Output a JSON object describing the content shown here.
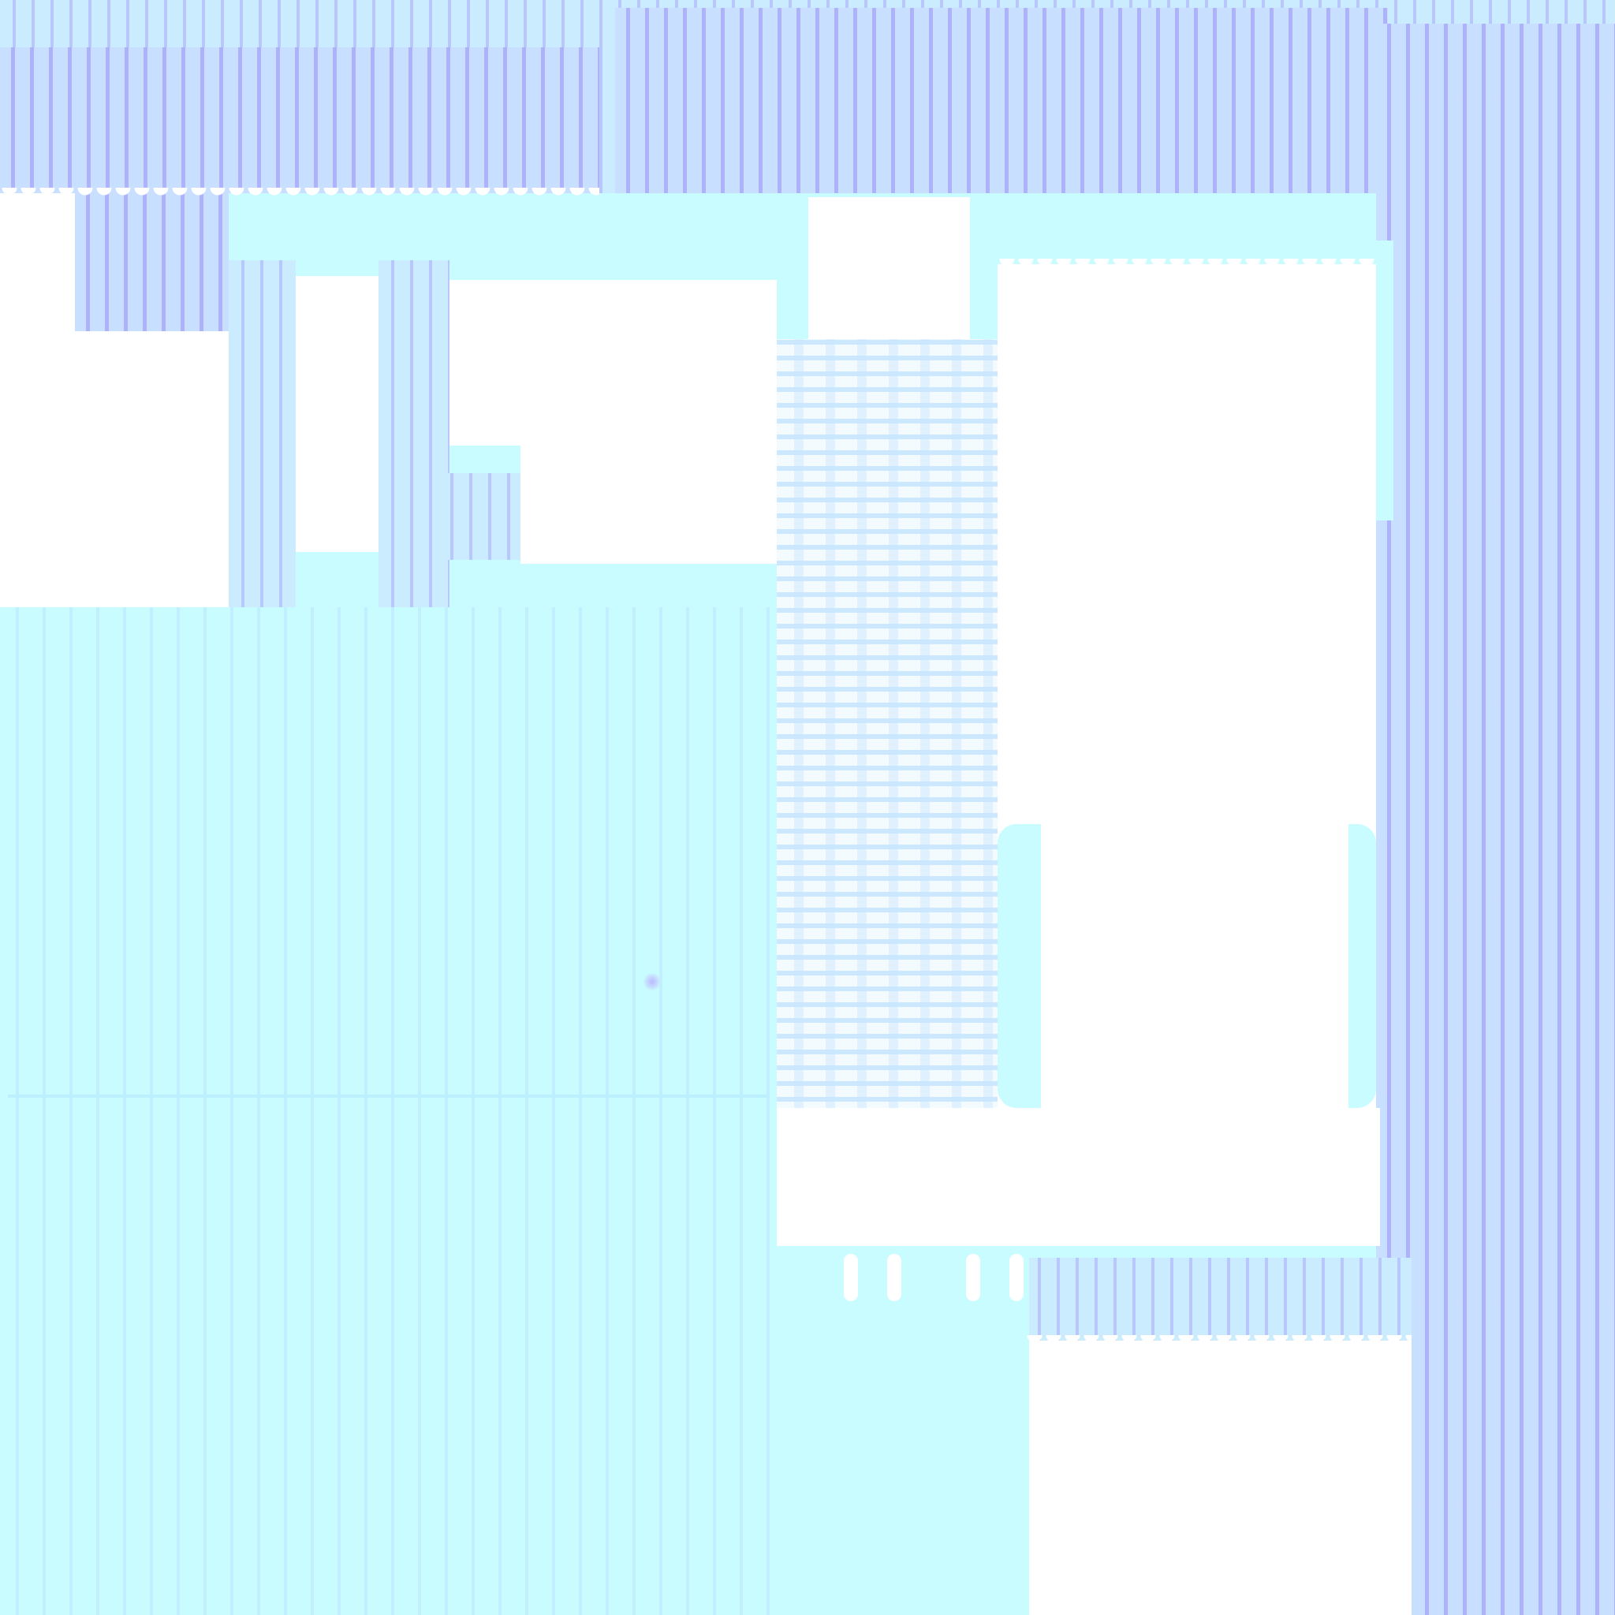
{
  "colors": {
    "background": "#c8fcff",
    "periwinkle": "#c9dfff",
    "stripe": "#aaaafa",
    "white": "#ffffff"
  },
  "icons": [
    "dot-marker-icon"
  ]
}
